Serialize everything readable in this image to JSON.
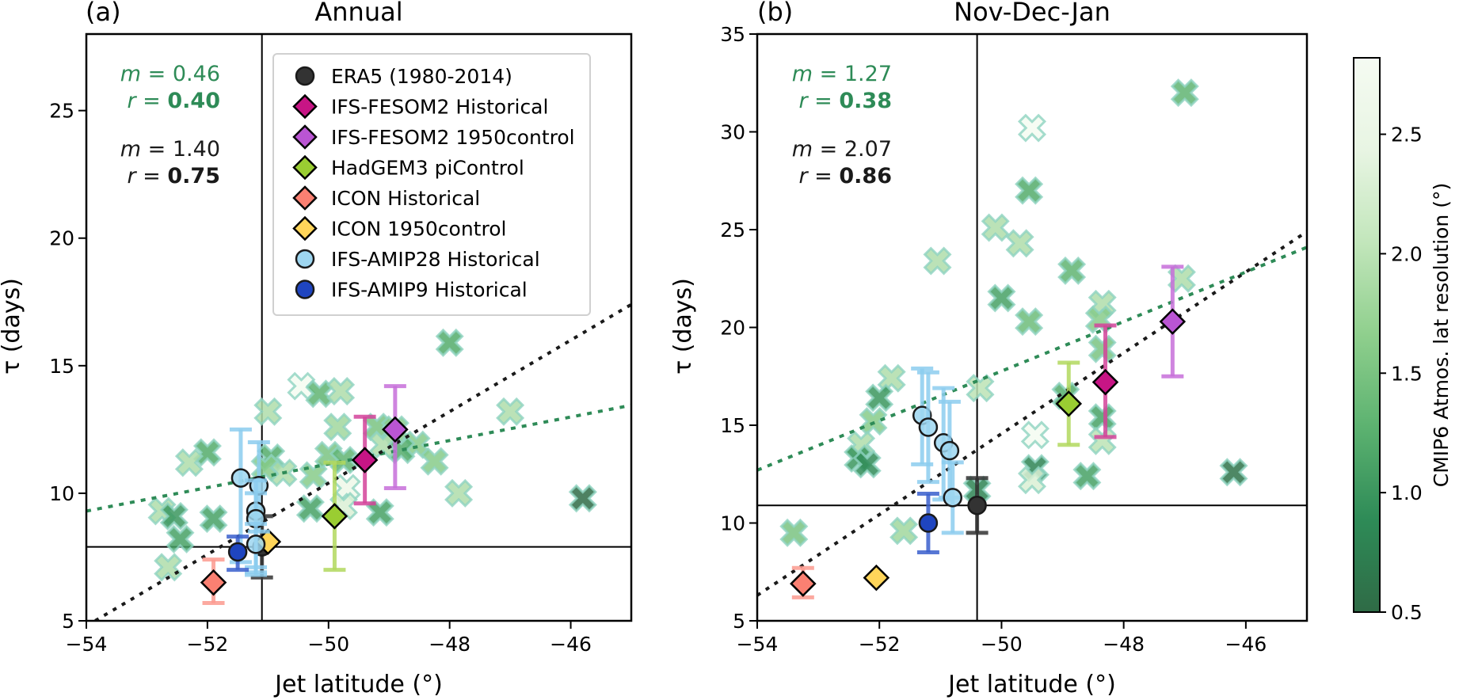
{
  "chart_data": [
    {
      "panel_label": "(a)",
      "type": "scatter",
      "title": "Annual",
      "xlabel": "Jet latitude (°)",
      "ylabel": "τ (days)",
      "xlim": [
        -54,
        -45
      ],
      "ylim": [
        5,
        28
      ],
      "xticks": [
        -54,
        -52,
        -50,
        -48,
        -46
      ],
      "xtick_labels": [
        "−54",
        "−52",
        "−50",
        "−48",
        "−46"
      ],
      "yticks": [
        5,
        10,
        15,
        20,
        25
      ],
      "ytick_labels": [
        "5",
        "10",
        "15",
        "20",
        "25"
      ],
      "era5_reference_lines": {
        "x": -51.1,
        "y": 7.9
      },
      "stats": {
        "cmip6": {
          "m_label": "m",
          "m_value": "0.46",
          "r_label": "r",
          "r_value": "0.40",
          "color": "#2e8b57"
        },
        "all": {
          "m_label": "m",
          "m_value": "1.40",
          "r_label": "r",
          "r_value": "0.75",
          "color": "#1a1a1a"
        }
      },
      "fit_lines": [
        {
          "name": "CMIP6 fit",
          "color": "#2e8b57",
          "slope": 0.46,
          "x": [
            -54,
            -45
          ],
          "y": [
            9.3,
            13.45
          ]
        },
        {
          "name": "All-models fit",
          "color": "#1a1a1a",
          "slope": 1.4,
          "x": [
            -54,
            -45
          ],
          "y": [
            4.8,
            17.4
          ]
        }
      ],
      "cmip6_points": [
        {
          "x": -48.0,
          "y": 15.9,
          "res": 1.2
        },
        {
          "x": -50.45,
          "y": 14.2,
          "res": 2.8
        },
        {
          "x": -50.15,
          "y": 13.9,
          "res": 1.3
        },
        {
          "x": -49.8,
          "y": 14.0,
          "res": 1.9
        },
        {
          "x": -51.0,
          "y": 13.2,
          "res": 1.9
        },
        {
          "x": -49.85,
          "y": 12.6,
          "res": 1.8
        },
        {
          "x": -47.0,
          "y": 13.2,
          "res": 1.9
        },
        {
          "x": -49.2,
          "y": 12.6,
          "res": 1.5
        },
        {
          "x": -48.9,
          "y": 12.5,
          "res": 1.6
        },
        {
          "x": -48.55,
          "y": 11.9,
          "res": 1.6
        },
        {
          "x": -48.25,
          "y": 11.25,
          "res": 1.6
        },
        {
          "x": -48.8,
          "y": 11.7,
          "res": 1.2
        },
        {
          "x": -49.1,
          "y": 11.9,
          "res": 1.9
        },
        {
          "x": -52.0,
          "y": 11.6,
          "res": 1.2
        },
        {
          "x": -52.3,
          "y": 11.2,
          "res": 1.9
        },
        {
          "x": -50.95,
          "y": 11.4,
          "res": 1.2
        },
        {
          "x": -50.75,
          "y": 10.8,
          "res": 1.9
        },
        {
          "x": -51.05,
          "y": 11.0,
          "res": 1.6
        },
        {
          "x": -50.25,
          "y": 10.7,
          "res": 1.6
        },
        {
          "x": -50.0,
          "y": 11.5,
          "res": 1.5
        },
        {
          "x": -49.75,
          "y": 11.3,
          "res": 1.3
        },
        {
          "x": -47.85,
          "y": 10.0,
          "res": 1.9
        },
        {
          "x": -45.8,
          "y": 9.8,
          "res": 0.5
        },
        {
          "x": -50.3,
          "y": 9.4,
          "res": 1.1
        },
        {
          "x": -49.15,
          "y": 9.25,
          "res": 1.1
        },
        {
          "x": -49.7,
          "y": 10.2,
          "res": 2.6
        },
        {
          "x": -49.75,
          "y": 9.5,
          "res": 2.3
        },
        {
          "x": -52.75,
          "y": 9.3,
          "res": 1.9
        },
        {
          "x": -52.55,
          "y": 9.1,
          "res": 1.0
        },
        {
          "x": -51.9,
          "y": 9.0,
          "res": 1.1
        },
        {
          "x": -52.45,
          "y": 8.2,
          "res": 1.1
        },
        {
          "x": -52.65,
          "y": 7.1,
          "res": 1.9
        }
      ],
      "model_points": [
        {
          "name": "ERA5 (1980-2014)",
          "x": -51.1,
          "y": 7.9,
          "marker": "circle",
          "color": "#333333",
          "err_low": 6.7,
          "err_high": 9.1,
          "err_color": "#333333"
        },
        {
          "name": "IFS-FESOM2 Historical",
          "x": -49.4,
          "y": 11.3,
          "marker": "diamond",
          "color": "#c71585",
          "err_low": 9.6,
          "err_high": 13.0,
          "err_color": "#d4439a"
        },
        {
          "name": "IFS-FESOM2 1950control",
          "x": -48.9,
          "y": 12.5,
          "marker": "diamond",
          "color": "#ba55d3",
          "err_low": 10.2,
          "err_high": 14.2,
          "err_color": "#c76fd9"
        },
        {
          "name": "HadGEM3 piControl",
          "x": -49.9,
          "y": 9.1,
          "marker": "diamond",
          "color": "#9acd32",
          "err_low": 7.0,
          "err_high": 11.2,
          "err_color": "#b2d85e"
        },
        {
          "name": "ICON Historical",
          "x": -51.9,
          "y": 6.5,
          "marker": "diamond",
          "color": "#fa8072",
          "err_low": 5.7,
          "err_high": 7.4,
          "err_color": "#fb9a8f"
        },
        {
          "name": "ICON 1950control",
          "x": -51.0,
          "y": 8.1,
          "marker": "diamond",
          "color": "#ffd55a",
          "err_low": null,
          "err_high": null,
          "err_color": null
        },
        {
          "name": "IFS-AMIP28 Historical",
          "x": -51.45,
          "y": 10.6,
          "marker": "circle",
          "color": "#9ed6f0",
          "err_low": 7.3,
          "err_high": 12.5,
          "err_color": "#8ccdee"
        },
        {
          "name": "IFS-AMIP28 Historical",
          "x": -51.15,
          "y": 10.3,
          "marker": "circle",
          "color": "#9ed6f0",
          "err_low": 8.5,
          "err_high": 12.0,
          "err_color": "#8ccdee"
        },
        {
          "name": "IFS-AMIP28 Historical",
          "x": -51.2,
          "y": 9.3,
          "marker": "circle",
          "color": "#9ed6f0",
          "err_low": 7.1,
          "err_high": 10.5,
          "err_color": "#8ccdee"
        },
        {
          "name": "IFS-AMIP28 Historical",
          "x": -51.2,
          "y": 9.0,
          "marker": "circle",
          "color": "#9ed6f0",
          "err_low": 6.9,
          "err_high": 10.0,
          "err_color": "#8ccdee"
        },
        {
          "name": "IFS-AMIP28 Historical",
          "x": -51.2,
          "y": 8.0,
          "marker": "circle",
          "color": "#9ed6f0",
          "err_low": 6.8,
          "err_high": 8.8,
          "err_color": "#8ccdee"
        },
        {
          "name": "IFS-AMIP9 Historical",
          "x": -51.5,
          "y": 7.7,
          "marker": "circle",
          "color": "#1f45c0",
          "err_low": 7.0,
          "err_high": 8.3,
          "err_color": "#3a5fcd"
        }
      ]
    },
    {
      "panel_label": "(b)",
      "type": "scatter",
      "title": "Nov-Dec-Jan",
      "xlabel": "Jet latitude (°)",
      "ylabel": "τ (days)",
      "xlim": [
        -54,
        -45
      ],
      "ylim": [
        5,
        35
      ],
      "xticks": [
        -54,
        -52,
        -50,
        -48,
        -46
      ],
      "xtick_labels": [
        "−54",
        "−52",
        "−50",
        "−48",
        "−46"
      ],
      "yticks": [
        5,
        10,
        15,
        20,
        25,
        30,
        35
      ],
      "ytick_labels": [
        "5",
        "10",
        "15",
        "20",
        "25",
        "30",
        "35"
      ],
      "era5_reference_lines": {
        "x": -50.4,
        "y": 10.9
      },
      "stats": {
        "cmip6": {
          "m_label": "m",
          "m_value": "1.27",
          "r_label": "r",
          "r_value": "0.38",
          "color": "#2e8b57"
        },
        "all": {
          "m_label": "m",
          "m_value": "2.07",
          "r_label": "r",
          "r_value": "0.86",
          "color": "#1a1a1a"
        }
      },
      "fit_lines": [
        {
          "name": "CMIP6 fit",
          "color": "#2e8b57",
          "slope": 1.27,
          "x": [
            -54,
            -45
          ],
          "y": [
            12.7,
            24.1
          ]
        },
        {
          "name": "All-models fit",
          "color": "#1a1a1a",
          "slope": 2.07,
          "x": [
            -54,
            -45
          ],
          "y": [
            6.3,
            24.9
          ]
        }
      ],
      "cmip6_points": [
        {
          "x": -47.0,
          "y": 32.0,
          "res": 1.3
        },
        {
          "x": -49.5,
          "y": 30.2,
          "res": 2.8
        },
        {
          "x": -49.55,
          "y": 27.0,
          "res": 1.2
        },
        {
          "x": -50.1,
          "y": 25.1,
          "res": 1.9
        },
        {
          "x": -49.7,
          "y": 24.3,
          "res": 1.9
        },
        {
          "x": -51.05,
          "y": 23.4,
          "res": 1.9
        },
        {
          "x": -48.85,
          "y": 22.9,
          "res": 1.3
        },
        {
          "x": -47.05,
          "y": 22.5,
          "res": 1.9
        },
        {
          "x": -50.0,
          "y": 21.5,
          "res": 1.1
        },
        {
          "x": -48.35,
          "y": 21.2,
          "res": 1.9
        },
        {
          "x": -48.4,
          "y": 20.4,
          "res": 1.6
        },
        {
          "x": -49.55,
          "y": 20.3,
          "res": 1.4
        },
        {
          "x": -48.35,
          "y": 18.9,
          "res": 1.5
        },
        {
          "x": -51.8,
          "y": 17.4,
          "res": 1.9
        },
        {
          "x": -50.35,
          "y": 16.9,
          "res": 2.0
        },
        {
          "x": -52.0,
          "y": 16.4,
          "res": 1.0
        },
        {
          "x": -52.1,
          "y": 15.2,
          "res": 1.6
        },
        {
          "x": -48.95,
          "y": 16.5,
          "res": 1.2
        },
        {
          "x": -48.35,
          "y": 15.4,
          "res": 1.1
        },
        {
          "x": -49.45,
          "y": 14.5,
          "res": 2.8
        },
        {
          "x": -48.35,
          "y": 14.2,
          "res": 2.0
        },
        {
          "x": -52.3,
          "y": 14.0,
          "res": 1.9
        },
        {
          "x": -52.35,
          "y": 13.3,
          "res": 1.0
        },
        {
          "x": -52.2,
          "y": 13.0,
          "res": 0.9
        },
        {
          "x": -49.45,
          "y": 12.8,
          "res": 0.8
        },
        {
          "x": -49.5,
          "y": 12.2,
          "res": 2.3
        },
        {
          "x": -48.6,
          "y": 12.4,
          "res": 1.1
        },
        {
          "x": -46.2,
          "y": 12.6,
          "res": 0.6
        },
        {
          "x": -50.4,
          "y": 11.7,
          "res": 0.8
        },
        {
          "x": -53.4,
          "y": 9.5,
          "res": 1.5
        },
        {
          "x": -51.6,
          "y": 9.6,
          "res": 1.8
        }
      ],
      "model_points": [
        {
          "name": "ERA5 (1980-2014)",
          "x": -50.4,
          "y": 10.9,
          "marker": "circle",
          "color": "#333333",
          "err_low": 9.5,
          "err_high": 12.3,
          "err_color": "#333333"
        },
        {
          "name": "IFS-FESOM2 Historical",
          "x": -48.3,
          "y": 17.2,
          "marker": "diamond",
          "color": "#c71585",
          "err_low": 14.4,
          "err_high": 20.1,
          "err_color": "#d4439a"
        },
        {
          "name": "IFS-FESOM2 1950control",
          "x": -47.2,
          "y": 20.3,
          "marker": "diamond",
          "color": "#ba55d3",
          "err_low": 17.5,
          "err_high": 23.1,
          "err_color": "#c76fd9"
        },
        {
          "name": "HadGEM3 piControl",
          "x": -48.9,
          "y": 16.1,
          "marker": "diamond",
          "color": "#9acd32",
          "err_low": 14.0,
          "err_high": 18.2,
          "err_color": "#b2d85e"
        },
        {
          "name": "ICON Historical",
          "x": -53.25,
          "y": 6.9,
          "marker": "diamond",
          "color": "#fa8072",
          "err_low": 6.2,
          "err_high": 7.7,
          "err_color": "#fb9a8f"
        },
        {
          "name": "ICON 1950control",
          "x": -52.05,
          "y": 7.2,
          "marker": "diamond",
          "color": "#ffd55a",
          "err_low": null,
          "err_high": null,
          "err_color": null
        },
        {
          "name": "IFS-AMIP28 Historical",
          "x": -51.3,
          "y": 15.5,
          "marker": "circle",
          "color": "#9ed6f0",
          "err_low": 13.0,
          "err_high": 17.9,
          "err_color": "#8ccdee"
        },
        {
          "name": "IFS-AMIP28 Historical",
          "x": -51.2,
          "y": 14.9,
          "marker": "circle",
          "color": "#9ed6f0",
          "err_low": 12.1,
          "err_high": 17.7,
          "err_color": "#8ccdee"
        },
        {
          "name": "IFS-AMIP28 Historical",
          "x": -50.95,
          "y": 14.1,
          "marker": "circle",
          "color": "#9ed6f0",
          "err_low": 11.2,
          "err_high": 16.9,
          "err_color": "#8ccdee"
        },
        {
          "name": "IFS-AMIP28 Historical",
          "x": -50.85,
          "y": 13.7,
          "marker": "circle",
          "color": "#9ed6f0",
          "err_low": 11.3,
          "err_high": 16.2,
          "err_color": "#8ccdee"
        },
        {
          "name": "IFS-AMIP28 Historical",
          "x": -50.8,
          "y": 11.3,
          "marker": "circle",
          "color": "#9ed6f0",
          "err_low": 9.5,
          "err_high": 13.1,
          "err_color": "#8ccdee"
        },
        {
          "name": "IFS-AMIP9 Historical",
          "x": -51.2,
          "y": 10.0,
          "marker": "circle",
          "color": "#1f45c0",
          "err_low": 8.5,
          "err_high": 11.5,
          "err_color": "#3a5fcd"
        }
      ]
    }
  ],
  "legend": {
    "entries": [
      {
        "label": "ERA5 (1980-2014)",
        "marker": "circle",
        "color": "#333333"
      },
      {
        "label": "IFS-FESOM2 Historical",
        "marker": "diamond",
        "color": "#c71585"
      },
      {
        "label": "IFS-FESOM2 1950control",
        "marker": "diamond",
        "color": "#ba55d3"
      },
      {
        "label": "HadGEM3 piControl",
        "marker": "diamond",
        "color": "#9acd32"
      },
      {
        "label": "ICON Historical",
        "marker": "diamond",
        "color": "#fa8072"
      },
      {
        "label": "ICON 1950control",
        "marker": "diamond",
        "color": "#ffd55a"
      },
      {
        "label": "IFS-AMIP28 Historical",
        "marker": "circle",
        "color": "#9ed6f0"
      },
      {
        "label": "IFS-AMIP9 Historical",
        "marker": "circle",
        "color": "#1f45c0"
      }
    ],
    "placement": "top-right of panel (a)"
  },
  "colorbar": {
    "label": "CMIP6 Atmos. lat resolution (°)",
    "range": [
      0.5,
      2.82
    ],
    "ticks": [
      0.5,
      1.0,
      1.5,
      2.0,
      2.5
    ],
    "tick_labels": [
      "0.5",
      "1.0",
      "1.5",
      "2.0",
      "2.5"
    ],
    "colormap": "Greens_r",
    "colors": [
      "#2f6b46",
      "#2e8b57",
      "#5cb270",
      "#8fcf8d",
      "#c2e6bb",
      "#e8f5e3",
      "#f5fbf2"
    ]
  }
}
